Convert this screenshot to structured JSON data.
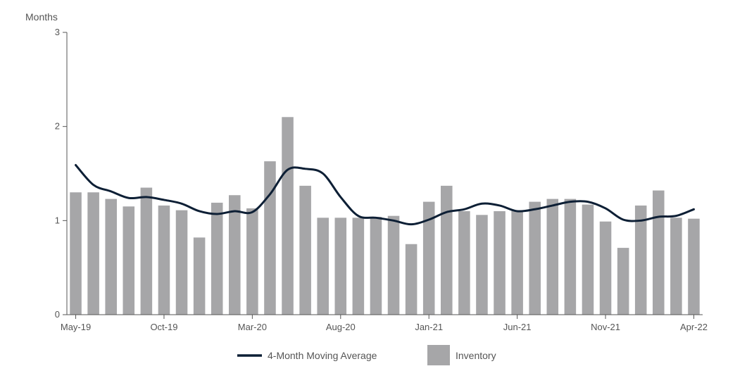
{
  "chart_data": {
    "type": "bar",
    "ylabel": "Months",
    "ylim": [
      0,
      3
    ],
    "yticks": [
      "0",
      "1",
      "2",
      "3"
    ],
    "categories": [
      "May-19",
      "Jun-19",
      "Jul-19",
      "Aug-19",
      "Sep-19",
      "Oct-19",
      "Nov-19",
      "Dec-19",
      "Jan-20",
      "Feb-20",
      "Mar-20",
      "Apr-20",
      "May-20",
      "Jun-20",
      "Jul-20",
      "Aug-20",
      "Sep-20",
      "Oct-20",
      "Nov-20",
      "Dec-20",
      "Jan-21",
      "Feb-21",
      "Mar-21",
      "Apr-21",
      "May-21",
      "Jun-21",
      "Jul-21",
      "Aug-21",
      "Sep-21",
      "Oct-21",
      "Nov-21",
      "Dec-21",
      "Jan-22",
      "Feb-22",
      "Mar-22",
      "Apr-22"
    ],
    "x_tick_labels": [
      "May-19",
      "Oct-19",
      "Mar-20",
      "Aug-20",
      "Jan-21",
      "Jun-21",
      "Nov-21",
      "Apr-22"
    ],
    "series": [
      {
        "name": "Inventory",
        "kind": "bar",
        "color": "#a6a6a8",
        "values": [
          1.3,
          1.3,
          1.23,
          1.15,
          1.35,
          1.16,
          1.11,
          0.82,
          1.19,
          1.27,
          1.13,
          1.63,
          2.1,
          1.37,
          1.03,
          1.03,
          1.03,
          1.04,
          1.05,
          0.75,
          1.2,
          1.37,
          1.1,
          1.06,
          1.1,
          1.11,
          1.2,
          1.23,
          1.23,
          1.17,
          0.99,
          0.71,
          1.16,
          1.32,
          1.03,
          1.02
        ]
      },
      {
        "name": "4-Month Moving Average",
        "kind": "line",
        "color": "#0d1f35",
        "values": [
          1.59,
          1.38,
          1.31,
          1.24,
          1.25,
          1.22,
          1.18,
          1.1,
          1.07,
          1.1,
          1.09,
          1.28,
          1.54,
          1.55,
          1.5,
          1.25,
          1.05,
          1.03,
          1.0,
          0.96,
          1.01,
          1.09,
          1.12,
          1.18,
          1.16,
          1.1,
          1.12,
          1.16,
          1.2,
          1.2,
          1.13,
          1.01,
          1.0,
          1.04,
          1.05,
          1.12
        ]
      }
    ],
    "legend": {
      "placement": "bottom"
    },
    "grid": false
  }
}
